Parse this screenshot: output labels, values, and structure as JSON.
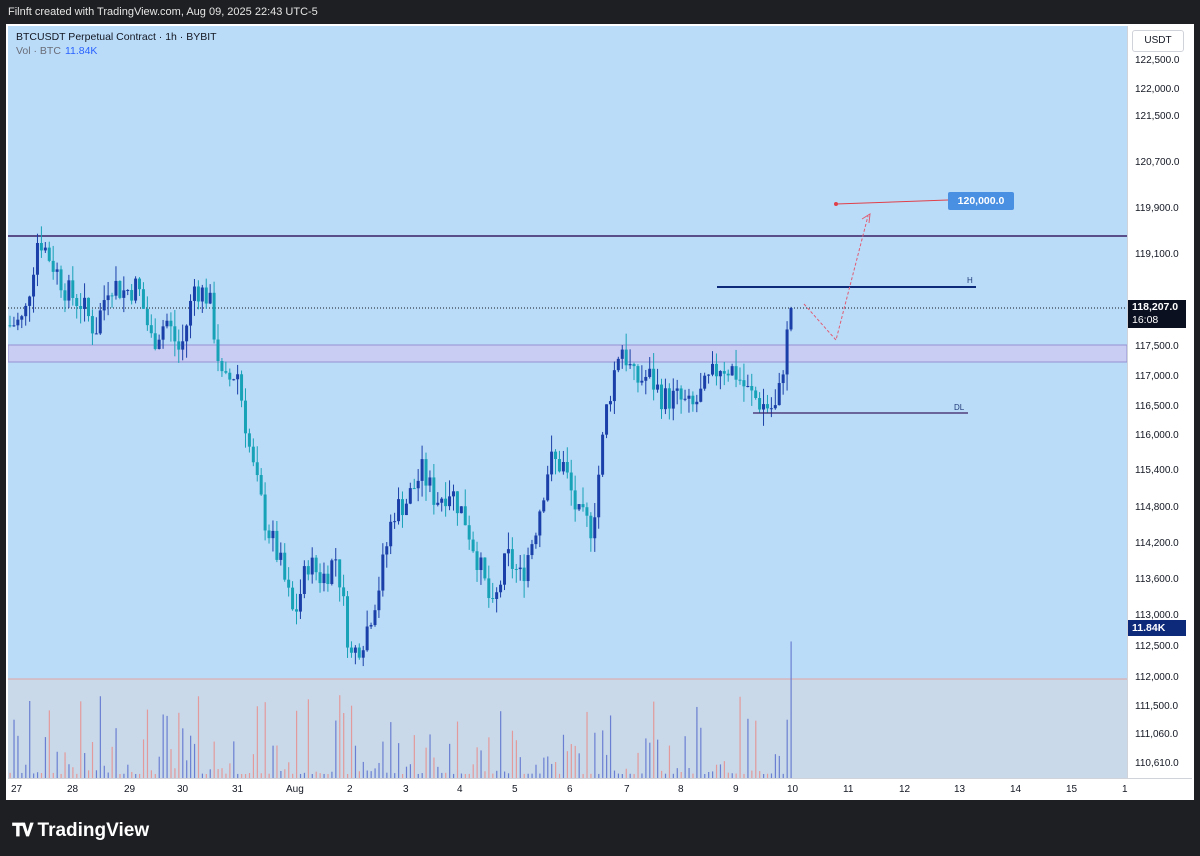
{
  "header": {
    "attribution": "Filnft created with TradingView.com, Aug 09, 2025 22:43 UTC-5"
  },
  "legend": {
    "symbol": "BTCUSDT Perpetual Contract · 1h · BYBIT",
    "vol_label": "Vol · BTC",
    "vol_value": "11.84K"
  },
  "price_axis": {
    "currency": "USDT",
    "ticks": [
      "122,500.0",
      "122,000.0",
      "121,500.0",
      "120,700.0",
      "119,900.0",
      "119,100.0",
      "117,500.0",
      "117,000.0",
      "116,500.0",
      "116,000.0",
      "115,400.0",
      "114,800.0",
      "114,200.0",
      "113,600.0",
      "113,000.0",
      "112,500.0",
      "112,000.0",
      "111,500.0",
      "111,060.0",
      "110,610.0"
    ],
    "current_price": "118,207.0",
    "countdown": "16:08",
    "volume_badge": "11.84K"
  },
  "time_axis": {
    "ticks": [
      "27",
      "28",
      "29",
      "30",
      "31",
      "Aug",
      "2",
      "3",
      "4",
      "5",
      "6",
      "7",
      "8",
      "9",
      "10",
      "11",
      "12",
      "13",
      "14",
      "15",
      "1"
    ]
  },
  "annotations": {
    "target": "120,000.0",
    "high_label": "H",
    "low_label": "DL"
  },
  "colors": {
    "background": "#bbdcf8",
    "up": "#1a3fa8",
    "down": "#17a2b8",
    "resistance": "#3b1f66",
    "level": "#0d2a7a"
  },
  "footer": {
    "brand": "TradingView",
    "logo_icon": "tradingview-logo-icon"
  },
  "chart_data": {
    "type": "candlestick",
    "symbol": "BTCUSDT Perpetual Contract",
    "interval": "1h",
    "exchange": "BYBIT",
    "current_price": 118207.0,
    "target_price": 120000.0,
    "resistance_level": 119400,
    "high_level": 118350,
    "zone": [
      117250,
      117550
    ],
    "dl_level": 116380,
    "close_path": [
      117900,
      118000,
      119500,
      119000,
      118500,
      118300,
      117800,
      118700,
      118500,
      118600,
      117600,
      118000,
      117400,
      118600,
      118400,
      116800,
      117100,
      115500,
      114400,
      113700,
      112700,
      113700,
      113400,
      113800,
      112000,
      112400,
      113300,
      114600,
      114800,
      115300,
      114800,
      115000,
      114500,
      113700,
      112800,
      113800,
      113400,
      114300,
      115500,
      115400,
      114500,
      114300,
      116400,
      117600,
      116900,
      117000,
      116600,
      116600,
      116400,
      116800,
      117200,
      117100,
      116700,
      116500,
      116400,
      118207
    ]
  }
}
